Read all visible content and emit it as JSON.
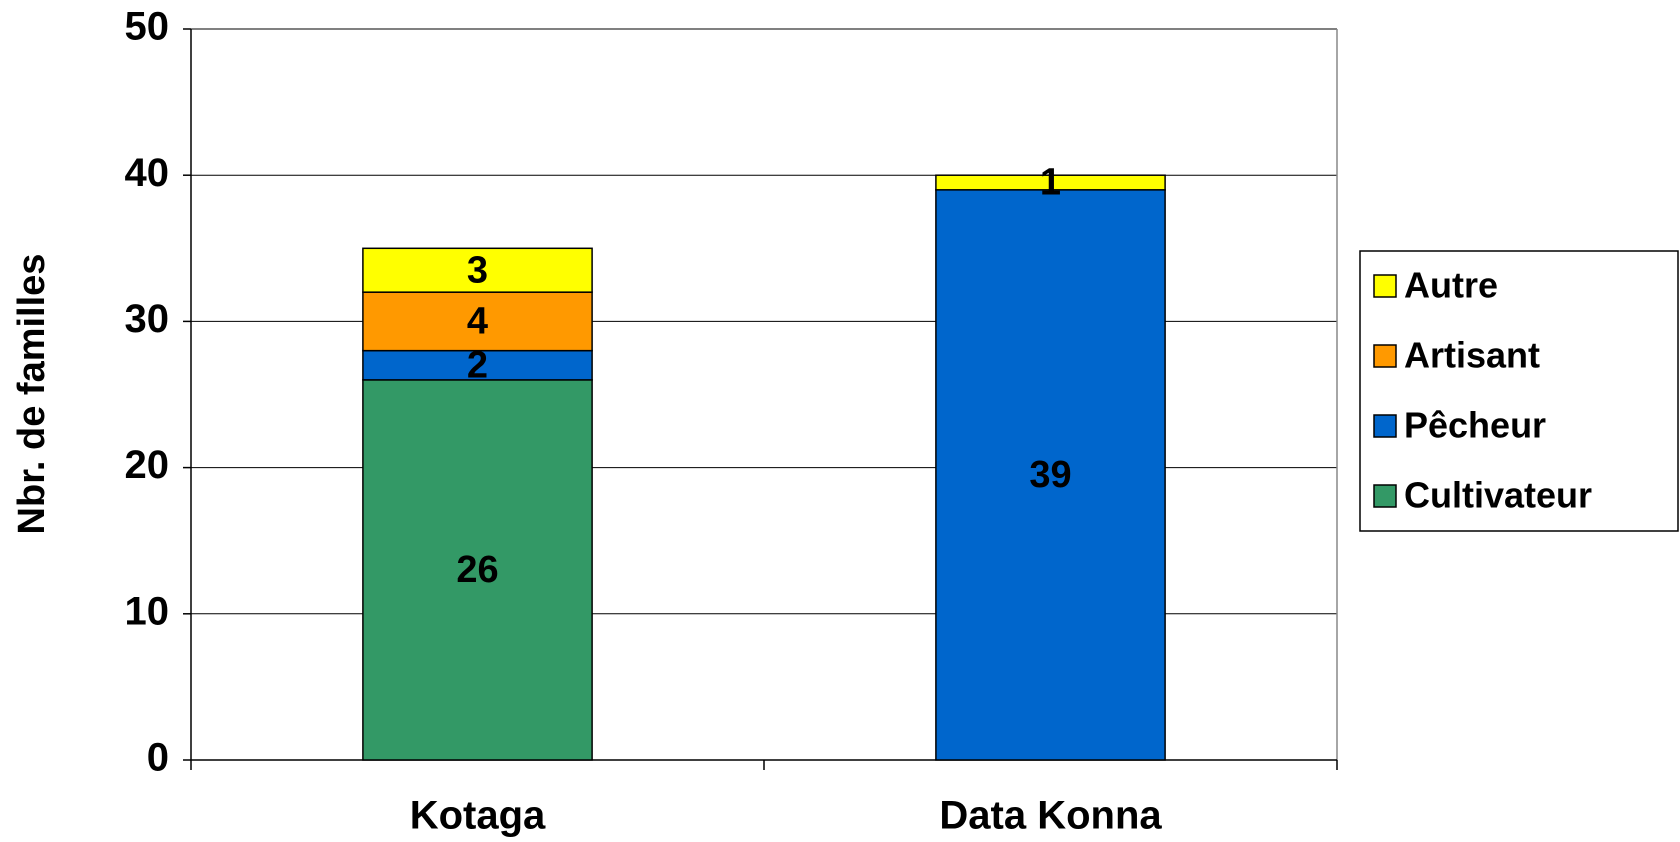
{
  "chart_data": {
    "type": "stacked_bar",
    "y_label": "Nbr. de familles",
    "categories": [
      "Kotaga",
      "Data Konna"
    ],
    "series": [
      {
        "name": "Cultivateur",
        "color": "#339966",
        "values": [
          26,
          null
        ]
      },
      {
        "name": "Pêcheur",
        "color": "#0066cc",
        "values": [
          2,
          39
        ]
      },
      {
        "name": "Artisant",
        "color": "#ff9900",
        "values": [
          4,
          null
        ]
      },
      {
        "name": "Autre",
        "color": "#ffff00",
        "values": [
          3,
          1
        ]
      }
    ],
    "ylim": [
      0,
      50
    ],
    "yticks": [
      0,
      10,
      20,
      30,
      40,
      50
    ],
    "grid": true,
    "legend": "right"
  }
}
